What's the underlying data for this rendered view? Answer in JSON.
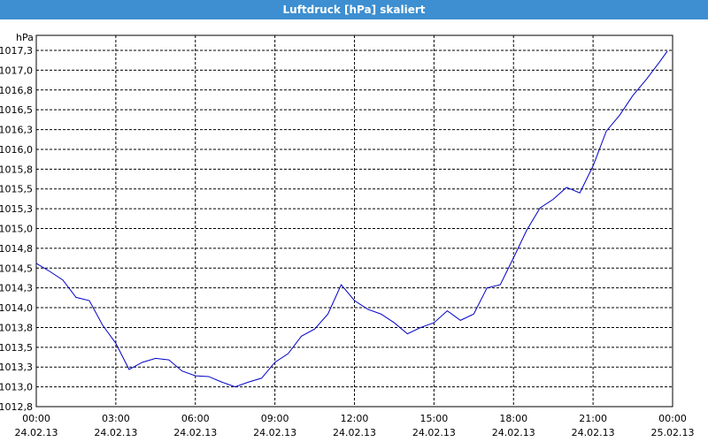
{
  "chart_data": {
    "type": "line",
    "title": "Luftdruck [hPa] skaliert",
    "y_label": "hPa",
    "x": [
      0,
      0.5,
      1,
      1.5,
      2,
      2.5,
      3,
      3.5,
      4,
      4.5,
      5,
      5.5,
      6,
      6.5,
      7,
      7.5,
      8,
      8.5,
      9,
      9.5,
      10,
      10.5,
      11,
      11.5,
      12,
      12.5,
      13,
      13.5,
      14,
      14.5,
      15,
      15.5,
      16,
      16.5,
      17,
      17.5,
      18,
      18.5,
      19,
      19.5,
      20,
      20.5,
      21,
      21.5,
      22,
      22.5,
      23,
      23.5,
      23.8
    ],
    "series": [
      {
        "name": "Luftdruck",
        "color": "#0000c8",
        "values": [
          1014.56,
          1014.46,
          1014.35,
          1014.13,
          1014.09,
          1013.78,
          1013.55,
          1013.22,
          1013.31,
          1013.36,
          1013.34,
          1013.2,
          1013.14,
          1013.13,
          1013.06,
          1013.0,
          1013.06,
          1013.11,
          1013.31,
          1013.42,
          1013.64,
          1013.73,
          1013.92,
          1014.29,
          1014.09,
          1013.98,
          1013.92,
          1013.81,
          1013.67,
          1013.75,
          1013.81,
          1013.96,
          1013.84,
          1013.92,
          1014.25,
          1014.29,
          1014.63,
          1014.98,
          1015.26,
          1015.37,
          1015.52,
          1015.45,
          1015.79,
          1016.23,
          1016.43,
          1016.68,
          1016.88,
          1017.1,
          1017.24
        ]
      }
    ],
    "xlim": [
      0,
      24
    ],
    "xticks": [
      {
        "value": 0,
        "label": "00:00 24.02.13"
      },
      {
        "value": 3,
        "label": "03:00 24.02.13"
      },
      {
        "value": 6,
        "label": "06:00 24.02.13"
      },
      {
        "value": 9,
        "label": "09:00 24.02.13"
      },
      {
        "value": 12,
        "label": "12:00 24.02.13"
      },
      {
        "value": 15,
        "label": "15:00 24.02.13"
      },
      {
        "value": 18,
        "label": "18:00 24.02.13"
      },
      {
        "value": 21,
        "label": "21:00 24.02.13"
      },
      {
        "value": 24,
        "label": "00:00 25.02.13"
      }
    ],
    "ylim": [
      1012.75,
      1017.44
    ],
    "yticks": [
      {
        "value": 1012.75,
        "label": "1012,8"
      },
      {
        "value": 1013,
        "label": "1013,0"
      },
      {
        "value": 1013.25,
        "label": "1013,3"
      },
      {
        "value": 1013.5,
        "label": "1013,5"
      },
      {
        "value": 1013.75,
        "label": "1013,8"
      },
      {
        "value": 1014,
        "label": "1014,0"
      },
      {
        "value": 1014.25,
        "label": "1014,3"
      },
      {
        "value": 1014.5,
        "label": "1014,5"
      },
      {
        "value": 1014.75,
        "label": "1014,8"
      },
      {
        "value": 1015,
        "label": "1015,0"
      },
      {
        "value": 1015.25,
        "label": "1015,3"
      },
      {
        "value": 1015.5,
        "label": "1015,5"
      },
      {
        "value": 1015.75,
        "label": "1015,8"
      },
      {
        "value": 1016,
        "label": "1016,0"
      },
      {
        "value": 1016.25,
        "label": "1016,3"
      },
      {
        "value": 1016.5,
        "label": "1016,5"
      },
      {
        "value": 1016.75,
        "label": "1016,8"
      },
      {
        "value": 1017,
        "label": "1017,0"
      },
      {
        "value": 1017.25,
        "label": "1017,3"
      }
    ],
    "grid": true
  }
}
